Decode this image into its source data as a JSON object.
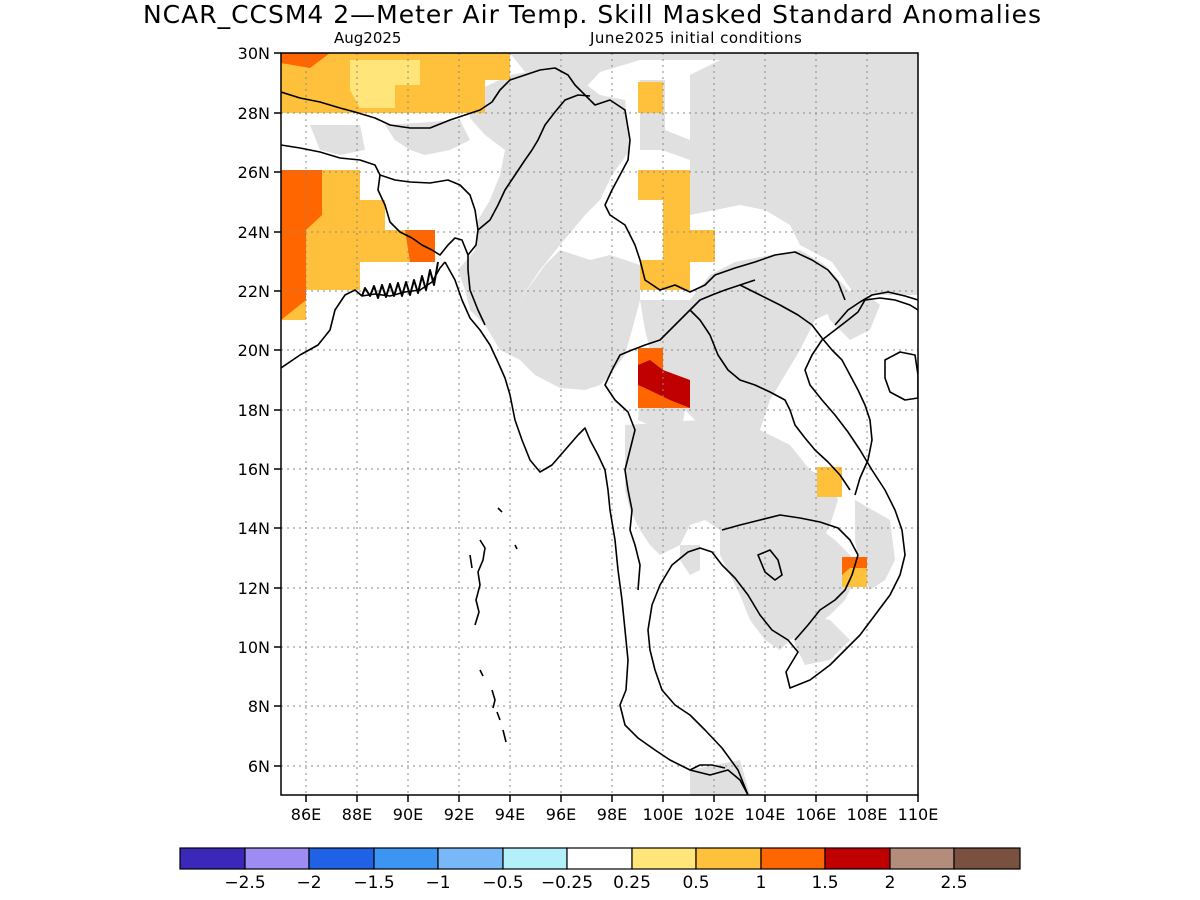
{
  "header": {
    "title": "NCAR_CCSM4 2—Meter Air Temp. Skill Masked Standard Anomalies",
    "valid_month": "Aug2025",
    "initial_conditions": "June2025 initial conditions"
  },
  "map": {
    "lon_range": [
      85,
      110
    ],
    "lat_range": [
      5,
      30
    ],
    "lon_ticks": [
      "86E",
      "88E",
      "90E",
      "92E",
      "94E",
      "96E",
      "98E",
      "100E",
      "102E",
      "104E",
      "106E",
      "108E",
      "110E"
    ],
    "lat_ticks": [
      "30N",
      "28N",
      "26N",
      "24N",
      "22N",
      "20N",
      "18N",
      "16N",
      "14N",
      "12N",
      "10N",
      "8N",
      "6N"
    ],
    "mask_color": "#e0e0e0",
    "grid_lines": "dotted"
  },
  "colorbar": {
    "colors": [
      "#3b28b8",
      "#9e8cf2",
      "#1f62e6",
      "#3c95f0",
      "#78b8f8",
      "#b4f0fa",
      "#ffffff",
      "#ffe57a",
      "#ffc03c",
      "#ff6600",
      "#c00000",
      "#b48c7c",
      "#7a5040"
    ],
    "labels": [
      "−2.5",
      "−2",
      "−1.5",
      "−1",
      "−0.5",
      "−0.25",
      "0.25",
      "0.5",
      "1",
      "1.5",
      "2",
      "2.5"
    ]
  }
}
